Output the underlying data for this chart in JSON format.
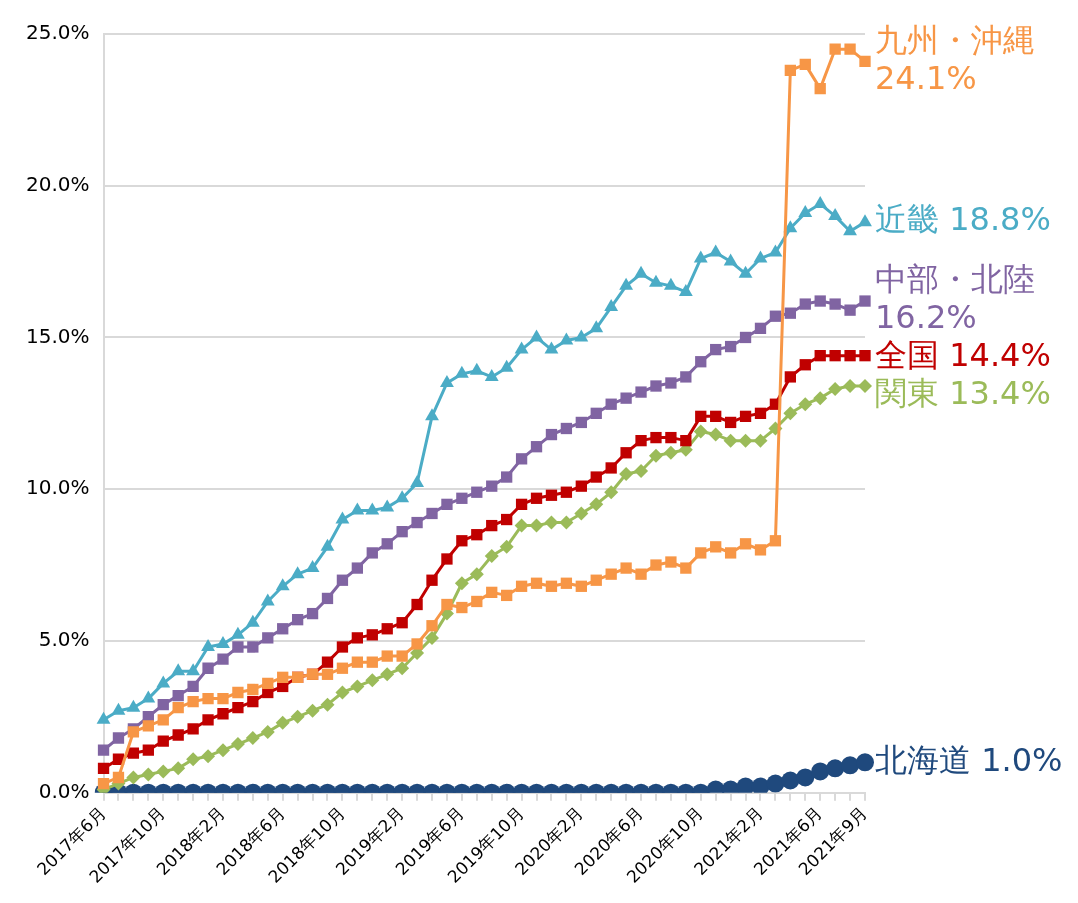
{
  "chart_data": {
    "type": "line",
    "categories": [
      "2017年6月",
      null,
      null,
      null,
      "2017年10月",
      null,
      null,
      null,
      "2018年2月",
      null,
      null,
      null,
      "2018年6月",
      null,
      null,
      null,
      "2018年10月",
      null,
      null,
      null,
      "2019年2月",
      null,
      null,
      null,
      "2019年6月",
      null,
      null,
      null,
      "2019年10月",
      null,
      null,
      null,
      "2020年2月",
      null,
      null,
      null,
      "2020年6月",
      null,
      null,
      null,
      "2020年10月",
      null,
      null,
      null,
      "2021年2月",
      null,
      null,
      null,
      "2021年6月",
      null,
      null,
      "2021年9月"
    ],
    "ylim": [
      0,
      25
    ],
    "yticks": [
      {
        "value": 0,
        "label": "0.0%"
      },
      {
        "value": 5,
        "label": "5.0%"
      },
      {
        "value": 10,
        "label": "10.0%"
      },
      {
        "value": 15,
        "label": "15.0%"
      },
      {
        "value": 20,
        "label": "20.0%"
      },
      {
        "value": 25,
        "label": "25.0%"
      }
    ],
    "grid": "y",
    "legend": false,
    "series": [
      {
        "name": "九州・沖縄",
        "color": "#f79646",
        "marker": "square",
        "values": [
          0.3,
          0.5,
          2.0,
          2.2,
          2.4,
          2.8,
          3.0,
          3.1,
          3.1,
          3.3,
          3.4,
          3.6,
          3.8,
          3.8,
          3.9,
          3.9,
          4.1,
          4.3,
          4.3,
          4.5,
          4.5,
          4.9,
          5.5,
          6.2,
          6.1,
          6.3,
          6.6,
          6.5,
          6.8,
          6.9,
          6.8,
          6.9,
          6.8,
          7.0,
          7.2,
          7.4,
          7.2,
          7.5,
          7.6,
          7.4,
          7.9,
          8.1,
          7.9,
          8.2,
          8.0,
          8.3,
          23.8,
          24.0,
          23.2,
          24.5,
          24.5,
          24.1
        ],
        "value_labels": [
          null,
          null,
          null,
          null,
          null,
          null,
          null,
          null,
          null,
          null,
          null,
          null,
          null,
          null,
          null,
          null,
          null,
          null,
          null,
          null,
          null,
          null,
          null,
          null,
          null,
          null,
          null,
          null,
          null,
          null,
          null,
          null,
          null,
          null,
          null,
          null,
          null,
          null,
          null,
          null,
          null,
          null,
          null,
          null,
          null,
          null,
          null,
          null,
          null,
          null,
          null,
          "24.1%"
        ]
      },
      {
        "name": "近畿",
        "color": "#4bacc6",
        "marker": "triangle",
        "values": [
          2.4,
          2.7,
          2.8,
          3.1,
          3.6,
          4.0,
          4.0,
          4.8,
          4.9,
          5.2,
          5.6,
          6.3,
          6.8,
          7.2,
          7.4,
          8.1,
          9.0,
          9.3,
          9.3,
          9.4,
          9.7,
          10.2,
          12.4,
          13.5,
          13.8,
          13.9,
          13.7,
          14.0,
          14.6,
          15.0,
          14.6,
          14.9,
          15.0,
          15.3,
          16.0,
          16.7,
          17.1,
          16.8,
          16.7,
          16.5,
          17.6,
          17.8,
          17.5,
          17.1,
          17.6,
          17.8,
          18.6,
          19.1,
          19.4,
          19.0,
          18.5,
          18.8
        ],
        "value_labels": [
          null,
          null,
          null,
          null,
          null,
          null,
          null,
          null,
          null,
          null,
          null,
          null,
          null,
          null,
          null,
          null,
          null,
          null,
          null,
          null,
          null,
          null,
          null,
          null,
          null,
          null,
          null,
          null,
          null,
          null,
          null,
          null,
          null,
          null,
          null,
          null,
          null,
          null,
          null,
          null,
          null,
          null,
          null,
          null,
          null,
          null,
          null,
          null,
          null,
          null,
          null,
          "18.8%"
        ]
      },
      {
        "name": "中部・北陸",
        "color": "#8064a2",
        "marker": "square",
        "values": [
          1.4,
          1.8,
          2.1,
          2.5,
          2.9,
          3.2,
          3.5,
          4.1,
          4.4,
          4.8,
          4.8,
          5.1,
          5.4,
          5.7,
          5.9,
          6.4,
          7.0,
          7.4,
          7.9,
          8.2,
          8.6,
          8.9,
          9.2,
          9.5,
          9.7,
          9.9,
          10.1,
          10.4,
          11.0,
          11.4,
          11.8,
          12.0,
          12.2,
          12.5,
          12.8,
          13.0,
          13.2,
          13.4,
          13.5,
          13.7,
          14.2,
          14.6,
          14.7,
          15.0,
          15.3,
          15.7,
          15.8,
          16.1,
          16.2,
          16.1,
          15.9,
          16.2
        ],
        "value_labels": [
          null,
          null,
          null,
          null,
          null,
          null,
          null,
          null,
          null,
          null,
          null,
          null,
          null,
          null,
          null,
          null,
          null,
          null,
          null,
          null,
          null,
          null,
          null,
          null,
          null,
          null,
          null,
          null,
          null,
          null,
          null,
          null,
          null,
          null,
          null,
          null,
          null,
          null,
          null,
          null,
          null,
          null,
          null,
          null,
          null,
          null,
          null,
          null,
          null,
          null,
          null,
          "16.2%"
        ]
      },
      {
        "name": "全国",
        "color": "#c00000",
        "marker": "square",
        "values": [
          0.8,
          1.1,
          1.3,
          1.4,
          1.7,
          1.9,
          2.1,
          2.4,
          2.6,
          2.8,
          3.0,
          3.3,
          3.5,
          3.8,
          3.9,
          4.3,
          4.8,
          5.1,
          5.2,
          5.4,
          5.6,
          6.2,
          7.0,
          7.7,
          8.3,
          8.5,
          8.8,
          9.0,
          9.5,
          9.7,
          9.8,
          9.9,
          10.1,
          10.4,
          10.7,
          11.2,
          11.6,
          11.7,
          11.7,
          11.6,
          12.4,
          12.4,
          12.2,
          12.4,
          12.5,
          12.8,
          13.7,
          14.1,
          14.4,
          14.4,
          14.4,
          14.4
        ],
        "value_labels": [
          null,
          null,
          null,
          null,
          null,
          null,
          null,
          null,
          null,
          null,
          null,
          null,
          null,
          null,
          null,
          null,
          null,
          null,
          null,
          null,
          null,
          null,
          null,
          null,
          null,
          null,
          null,
          null,
          null,
          null,
          null,
          null,
          null,
          null,
          null,
          null,
          null,
          null,
          null,
          null,
          null,
          null,
          null,
          null,
          null,
          null,
          null,
          null,
          null,
          null,
          null,
          "14.4%"
        ]
      },
      {
        "name": "関東",
        "color": "#9bbb59",
        "marker": "diamond",
        "values": [
          0.1,
          0.3,
          0.5,
          0.6,
          0.7,
          0.8,
          1.1,
          1.2,
          1.4,
          1.6,
          1.8,
          2.0,
          2.3,
          2.5,
          2.7,
          2.9,
          3.3,
          3.5,
          3.7,
          3.9,
          4.1,
          4.6,
          5.1,
          5.9,
          6.9,
          7.2,
          7.8,
          8.1,
          8.8,
          8.8,
          8.9,
          8.9,
          9.2,
          9.5,
          9.9,
          10.5,
          10.6,
          11.1,
          11.2,
          11.3,
          11.9,
          11.8,
          11.6,
          11.6,
          11.6,
          12.0,
          12.5,
          12.8,
          13.0,
          13.3,
          13.4,
          13.4
        ],
        "value_labels": [
          null,
          null,
          null,
          null,
          null,
          null,
          null,
          null,
          null,
          null,
          null,
          null,
          null,
          null,
          null,
          null,
          null,
          null,
          null,
          null,
          null,
          null,
          null,
          null,
          null,
          null,
          null,
          null,
          null,
          null,
          null,
          null,
          null,
          null,
          null,
          null,
          null,
          null,
          null,
          null,
          null,
          null,
          null,
          null,
          null,
          null,
          null,
          null,
          null,
          null,
          null,
          "13.4%"
        ]
      },
      {
        "name": "北海道",
        "color": "#1f497d",
        "marker": "circle",
        "values": [
          0,
          0,
          0,
          0,
          0,
          0,
          0,
          0,
          0,
          0,
          0,
          0,
          0,
          0,
          0,
          0,
          0,
          0,
          0,
          0,
          0,
          0,
          0,
          0,
          0,
          0,
          0,
          0,
          0,
          0,
          0,
          0,
          0,
          0,
          0,
          0,
          0,
          0,
          0,
          0,
          0,
          0.1,
          0.1,
          0.2,
          0.2,
          0.3,
          0.4,
          0.5,
          0.7,
          0.8,
          0.9,
          1.0
        ],
        "value_labels": [
          null,
          null,
          null,
          null,
          null,
          null,
          null,
          null,
          null,
          null,
          null,
          null,
          null,
          null,
          null,
          null,
          null,
          null,
          null,
          null,
          null,
          null,
          null,
          null,
          null,
          null,
          null,
          null,
          null,
          null,
          null,
          null,
          null,
          null,
          null,
          null,
          null,
          null,
          null,
          null,
          null,
          null,
          null,
          null,
          null,
          null,
          null,
          null,
          null,
          null,
          null,
          "1.0%"
        ]
      }
    ]
  }
}
